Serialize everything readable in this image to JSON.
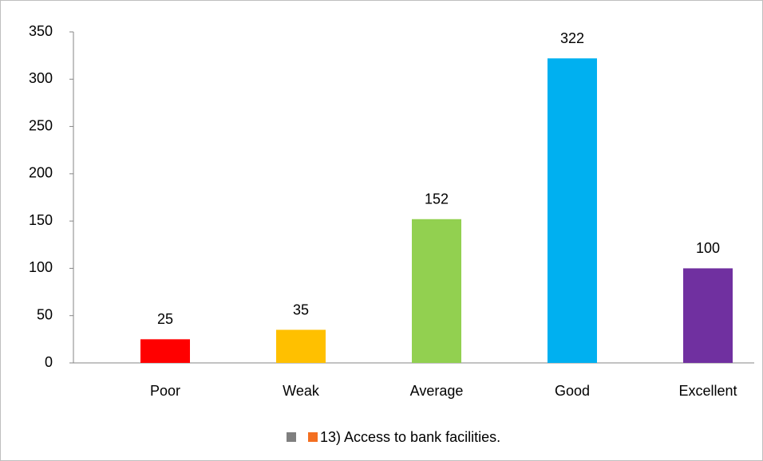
{
  "chart_data": {
    "type": "bar",
    "categories": [
      "Poor",
      "Weak",
      "Average",
      "Good",
      "Excellent"
    ],
    "values": [
      25,
      35,
      152,
      322,
      100
    ],
    "colors": [
      "#ff0000",
      "#ffc000",
      "#92d050",
      "#00b0f0",
      "#7030a0"
    ],
    "legend": {
      "name": "13) Access to bank facilities.",
      "color": "#f36f21"
    },
    "ylim": [
      0,
      350
    ],
    "yticks": [
      0,
      50,
      100,
      150,
      200,
      250,
      300,
      350
    ],
    "grid": false
  }
}
